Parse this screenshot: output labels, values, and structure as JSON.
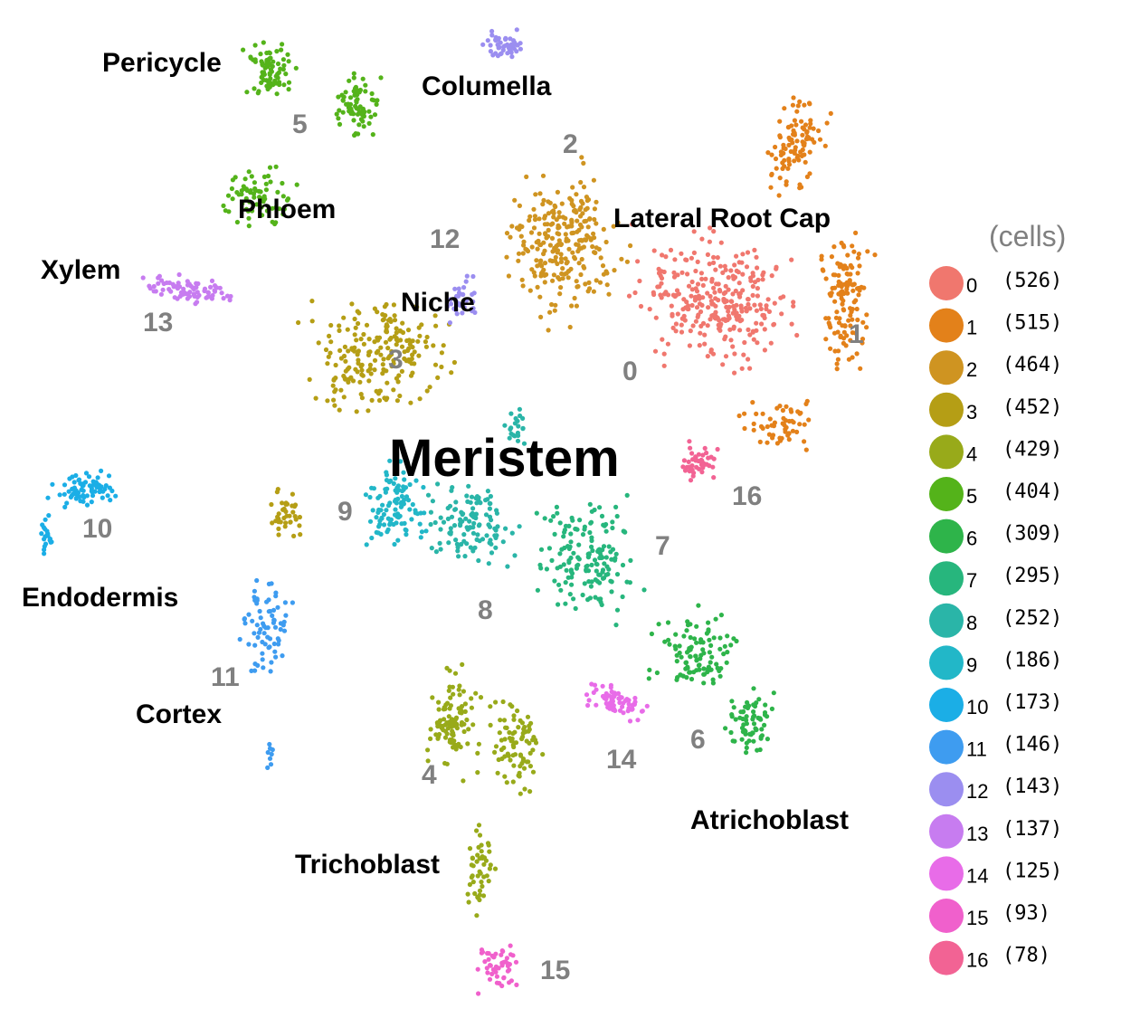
{
  "chart_data": {
    "type": "scatter",
    "title": "",
    "xlabel": "",
    "ylabel": "",
    "grid": false,
    "legend_position": "right",
    "legend_title": "(cells)",
    "series": [
      {
        "name": "0",
        "count": "(526)",
        "color": "#F0776E"
      },
      {
        "name": "1",
        "count": "(515)",
        "color": "#E3811A"
      },
      {
        "name": "2",
        "count": "(464)",
        "color": "#CF9421"
      },
      {
        "name": "3",
        "count": "(452)",
        "color": "#B59E15"
      },
      {
        "name": "4",
        "count": "(429)",
        "color": "#98AA1A"
      },
      {
        "name": "5",
        "count": "(404)",
        "color": "#54B31A"
      },
      {
        "name": "6",
        "count": "(309)",
        "color": "#2EB44A"
      },
      {
        "name": "7",
        "count": "(295)",
        "color": "#27B67D"
      },
      {
        "name": "8",
        "count": "(252)",
        "color": "#2AB5A8"
      },
      {
        "name": "9",
        "count": "(186)",
        "color": "#22B7C8"
      },
      {
        "name": "10",
        "count": "(173)",
        "color": "#1BAEE6"
      },
      {
        "name": "11",
        "count": "(146)",
        "color": "#3E9CF0"
      },
      {
        "name": "12",
        "count": "(143)",
        "color": "#9B8EF0"
      },
      {
        "name": "13",
        "count": "(137)",
        "color": "#C77CF0"
      },
      {
        "name": "14",
        "count": "(125)",
        "color": "#E86CE8"
      },
      {
        "name": "15",
        "count": "(93)",
        "color": "#F060CC"
      },
      {
        "name": "16",
        "count": "(78)",
        "color": "#F26394"
      }
    ],
    "annotations": {
      "tissues": [
        "Pericycle",
        "Columella",
        "Phloem",
        "Lateral Root Cap",
        "Xylem",
        "Niche",
        "Meristem",
        "Endodermis",
        "Cortex",
        "Trichoblast",
        "Atrichoblast"
      ],
      "cluster_numbers": [
        "5",
        "2",
        "12",
        "13",
        "3",
        "1",
        "0",
        "9",
        "10",
        "16",
        "7",
        "8",
        "11",
        "4",
        "14",
        "6",
        "15"
      ]
    }
  }
}
